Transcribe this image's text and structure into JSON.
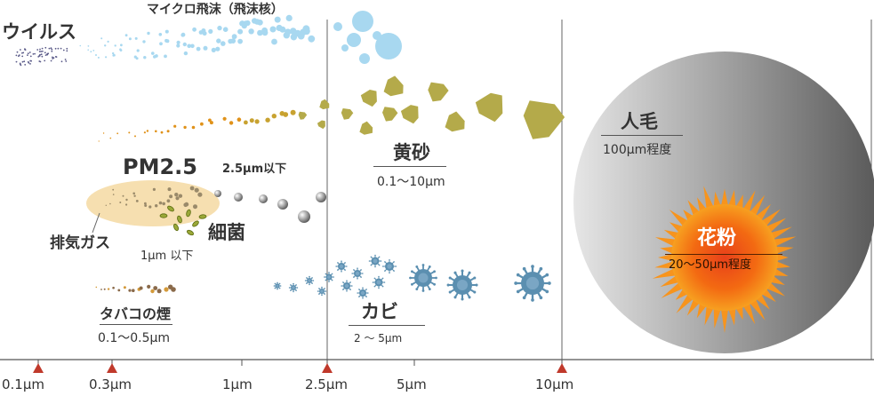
{
  "labels": {
    "virus": "ウイルス",
    "micro_droplet": "マイクロ飛沫（飛沫核）",
    "pm25": "PM2.5",
    "pm25_range": "2.5μm以下",
    "exhaust": "排気ガス",
    "bacteria": "細菌",
    "exhaust_range": "1μm 以下",
    "tobacco": "タバコの煙",
    "tobacco_range": "0.1〜0.5μm",
    "yellow_sand": "黄砂",
    "yellow_sand_range": "0.1〜10μm",
    "mold": "カビ",
    "mold_range": "2 〜 5μm",
    "hair": "人毛",
    "hair_range": "100μm程度",
    "pollen": "花粉",
    "pollen_range": "20〜50μm程度"
  },
  "axis_ticks": [
    "0.1μm",
    "0.3μm",
    "1μm",
    "2.5μm",
    "5μm",
    "10μm"
  ],
  "colors": {
    "virus": "#5a5a88",
    "droplet": "#a8d8f0",
    "sand": "#b4aa4a",
    "mold": "#5b8fb0",
    "marker": "#c0392b",
    "pm_ellipse": "#f6dfb0"
  }
}
